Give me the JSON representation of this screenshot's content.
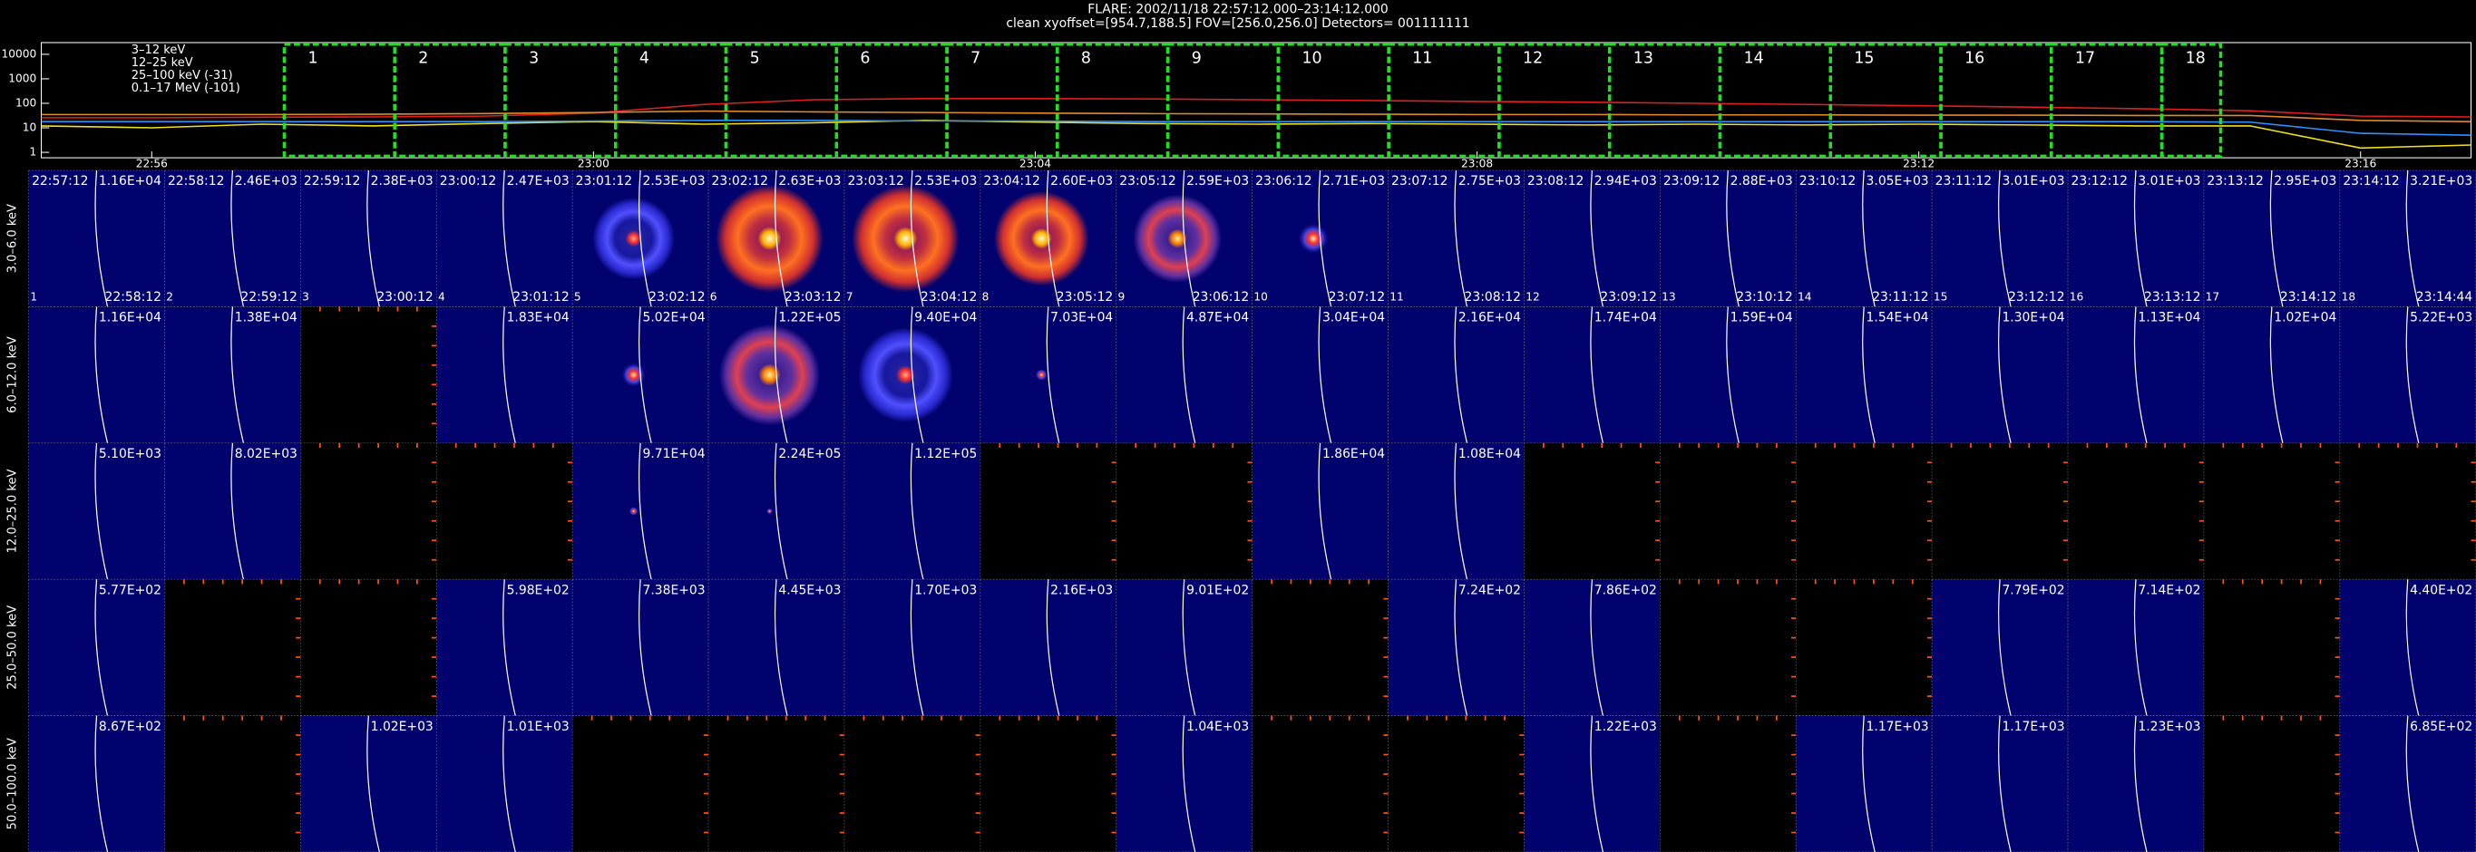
{
  "header": {
    "title": "FLARE: 2002/11/18 22:57:12.000–23:14:12.000",
    "subtitle": "clean    xyoffset=[954.7,188.5]    FOV=[256.0,256.0]    Detectors= 001111111"
  },
  "chart_data": {
    "type": "line",
    "log_y": true,
    "legend": "upper left",
    "x": [
      "22:55",
      "22:56",
      "22:57",
      "22:58",
      "22:59",
      "23:00",
      "23:01",
      "23:02",
      "23:03",
      "23:04",
      "23:05",
      "23:06",
      "23:07",
      "23:08",
      "23:09",
      "23:10",
      "23:11",
      "23:12",
      "23:13",
      "23:14",
      "23:15",
      "23:16",
      "23:17"
    ],
    "xlim": [
      "22:55",
      "23:17"
    ],
    "xticks": [
      "22:56",
      "23:00",
      "23:04",
      "23:08",
      "23:12",
      "23:16"
    ],
    "ylim": [
      0.6,
      30000
    ],
    "yticks": [
      1,
      10,
      100,
      1000,
      10000
    ],
    "series": [
      {
        "name": "3–12 keV",
        "color": "#e02020",
        "values": [
          26,
          26,
          27,
          28,
          30,
          40,
          90,
          140,
          155,
          155,
          150,
          140,
          130,
          120,
          110,
          100,
          90,
          80,
          70,
          60,
          50,
          30,
          28
        ]
      },
      {
        "name": "12–25 keV",
        "color": "#e08a30",
        "values": [
          35,
          35,
          35,
          36,
          38,
          42,
          48,
          45,
          42,
          40,
          38,
          37,
          36,
          35,
          35,
          34,
          34,
          33,
          33,
          32,
          32,
          20,
          18
        ]
      },
      {
        "name": "25–100 keV (-31)",
        "color": "#f0e020",
        "values": [
          12,
          10,
          14,
          12,
          15,
          18,
          14,
          16,
          20,
          17,
          15,
          14,
          15,
          14,
          13,
          14,
          13,
          14,
          13,
          12,
          12,
          1.5,
          2
        ]
      },
      {
        "name": "0.1–17 MeV (-101)",
        "color": "#3090ff",
        "values": [
          18,
          18,
          18,
          18,
          18,
          19,
          20,
          20,
          19,
          19,
          18,
          18,
          18,
          18,
          18,
          18,
          18,
          18,
          18,
          18,
          17,
          6,
          5
        ]
      }
    ]
  },
  "intervals": [
    1,
    2,
    3,
    4,
    5,
    6,
    7,
    8,
    9,
    10,
    11,
    12,
    13,
    14,
    15,
    16,
    17,
    18
  ],
  "panels": {
    "start_times": [
      "22:57:12",
      "22:58:12",
      "22:59:12",
      "23:00:12",
      "23:01:12",
      "23:02:12",
      "23:03:12",
      "23:04:12",
      "23:05:12",
      "23:06:12",
      "23:07:12",
      "23:08:12",
      "23:09:12",
      "23:10:12",
      "23:11:12",
      "23:12:12",
      "23:13:12",
      "23:14:12"
    ],
    "end_times": [
      "22:58:12",
      "22:59:12",
      "23:00:12",
      "23:01:12",
      "23:02:12",
      "23:03:12",
      "23:04:12",
      "23:05:12",
      "23:06:12",
      "23:07:12",
      "23:08:12",
      "23:09:12",
      "23:10:12",
      "23:11:12",
      "23:12:12",
      "23:13:12",
      "23:14:12",
      "23:14:44"
    ],
    "rows": [
      {
        "label": "3.0–6.0 keV",
        "max": [
          "1.16E+04",
          "2.46E+03",
          "2.38E+03",
          "2.47E+03",
          "2.53E+03",
          "2.63E+03",
          "2.53E+03",
          "2.60E+03",
          "2.59E+03",
          "2.71E+03",
          "2.75E+03",
          "2.94E+03",
          "2.88E+03",
          "3.05E+03",
          "3.01E+03",
          "3.01E+03",
          "2.95E+03",
          "3.21E+03"
        ]
      },
      {
        "label": "6.0–12.0 keV",
        "max": [
          "1.16E+04",
          "1.38E+04",
          null,
          "1.83E+04",
          "5.02E+04",
          "1.22E+05",
          "9.40E+04",
          "7.03E+04",
          "4.87E+04",
          "3.04E+04",
          "2.16E+04",
          "1.74E+04",
          "1.59E+04",
          "1.54E+04",
          "1.30E+04",
          "1.13E+04",
          "1.02E+04",
          "5.22E+03"
        ]
      },
      {
        "label": "12.0–25.0 keV",
        "max": [
          "5.10E+03",
          "8.02E+03",
          null,
          null,
          "9.71E+04",
          "2.24E+05",
          "1.12E+05",
          null,
          null,
          "1.86E+04",
          "1.08E+04",
          null,
          null,
          null,
          null,
          null,
          null,
          null
        ]
      },
      {
        "label": "25.0–50.0 keV",
        "max": [
          "5.77E+02",
          null,
          null,
          "5.98E+02",
          "7.38E+03",
          "4.45E+03",
          "1.70E+03",
          "2.16E+03",
          "9.01E+02",
          null,
          "7.24E+02",
          "7.86E+02",
          null,
          null,
          "7.79E+02",
          "7.14E+02",
          null,
          "4.40E+02"
        ]
      },
      {
        "label": "50.0–100.0 keV",
        "max": [
          "8.67E+02",
          null,
          "1.02E+03",
          "1.01E+03",
          null,
          null,
          null,
          null,
          "1.04E+03",
          null,
          null,
          "1.22E+03",
          null,
          "1.17E+03",
          "1.17E+03",
          "1.23E+03",
          null,
          "6.85E+02"
        ]
      }
    ]
  }
}
